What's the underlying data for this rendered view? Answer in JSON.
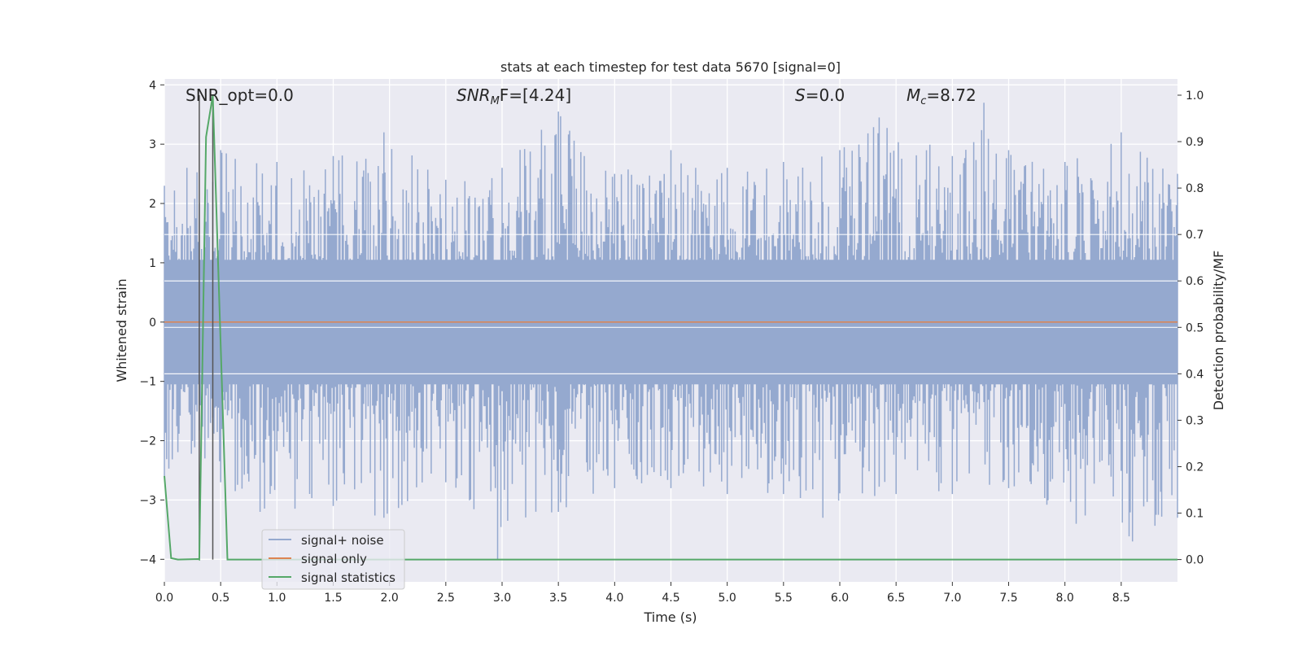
{
  "chart_data": {
    "type": "line",
    "title": "stats at each timestep for test data 5670 [signal=0]",
    "xlabel": "Time (s)",
    "ylabel": "Whitened strain",
    "y2label": "Detection probability/MF",
    "xlim": [
      0,
      9.0
    ],
    "ylim": [
      -4.38,
      4.1
    ],
    "y2lim": [
      -0.048,
      1.035
    ],
    "x_ticks": [
      "0.0",
      "0.5",
      "1.0",
      "1.5",
      "2.0",
      "2.5",
      "3.0",
      "3.5",
      "4.0",
      "4.5",
      "5.0",
      "5.5",
      "6.0",
      "6.5",
      "7.0",
      "7.5",
      "8.0",
      "8.5"
    ],
    "y_ticks": [
      "4",
      "3",
      "2",
      "1",
      "0",
      "−1",
      "−2",
      "−3",
      "−4"
    ],
    "y2_ticks": [
      "1.0",
      "0.9",
      "0.8",
      "0.7",
      "0.6",
      "0.5",
      "0.4",
      "0.3",
      "0.2",
      "0.1",
      "0.0"
    ],
    "grid": true,
    "legend_position": "lower-left",
    "annotations": [
      {
        "prefix": "SNR_opt=0.0",
        "sub": "",
        "suffix": ""
      },
      {
        "prefix": "SNR",
        "sub": "M",
        "suffix": "F=[4.24]"
      },
      {
        "prefix": "S",
        "sub": "",
        "suffix": "=0.0"
      },
      {
        "prefix": "M",
        "sub": "c",
        "suffix": "=8.72"
      }
    ],
    "vertical_markers_x": [
      0.31,
      0.43
    ],
    "series": [
      {
        "name": "signal+ noise",
        "axis": "left",
        "color": "#95a9cf",
        "envelope_top": [
          [
            0,
            2.3
          ],
          [
            0.2,
            2.6
          ],
          [
            0.5,
            2.9
          ],
          [
            1.0,
            2.7
          ],
          [
            1.5,
            2.8
          ],
          [
            1.95,
            3.2
          ],
          [
            2.5,
            2.4
          ],
          [
            3.0,
            2.6
          ],
          [
            3.5,
            3.55
          ],
          [
            4.0,
            2.5
          ],
          [
            4.5,
            2.9
          ],
          [
            5.0,
            2.6
          ],
          [
            5.5,
            2.7
          ],
          [
            6.0,
            2.9
          ],
          [
            6.35,
            3.45
          ],
          [
            7.0,
            2.8
          ],
          [
            7.28,
            3.7
          ],
          [
            7.5,
            2.9
          ],
          [
            8.0,
            2.7
          ],
          [
            8.5,
            3.2
          ],
          [
            9.0,
            2.5
          ]
        ],
        "envelope_bottom": [
          [
            0,
            -2.6
          ],
          [
            0.5,
            -2.7
          ],
          [
            0.85,
            -3.2
          ],
          [
            1.5,
            -3.1
          ],
          [
            1.95,
            -3.3
          ],
          [
            2.5,
            -2.7
          ],
          [
            2.96,
            -4.0
          ],
          [
            3.5,
            -3.2
          ],
          [
            4.0,
            -2.8
          ],
          [
            4.5,
            -2.8
          ],
          [
            5.0,
            -2.9
          ],
          [
            5.5,
            -2.9
          ],
          [
            5.85,
            -3.3
          ],
          [
            6.5,
            -2.9
          ],
          [
            7.0,
            -2.9
          ],
          [
            7.5,
            -2.8
          ],
          [
            8.1,
            -3.4
          ],
          [
            8.6,
            -3.7
          ],
          [
            9.0,
            -3.3
          ]
        ]
      },
      {
        "name": "signal only",
        "axis": "left",
        "color": "#dd8452",
        "x": [
          0,
          9.0
        ],
        "values": [
          0,
          0
        ]
      },
      {
        "name": "signal statistics",
        "axis": "right",
        "color": "#55a868",
        "x": [
          0,
          0.06,
          0.12,
          0.3,
          0.31,
          0.37,
          0.43,
          0.56,
          9.0
        ],
        "values": [
          0.18,
          0.003,
          0.0,
          0.001,
          0.0,
          0.91,
          1.0,
          0.0,
          0.0
        ]
      }
    ]
  }
}
